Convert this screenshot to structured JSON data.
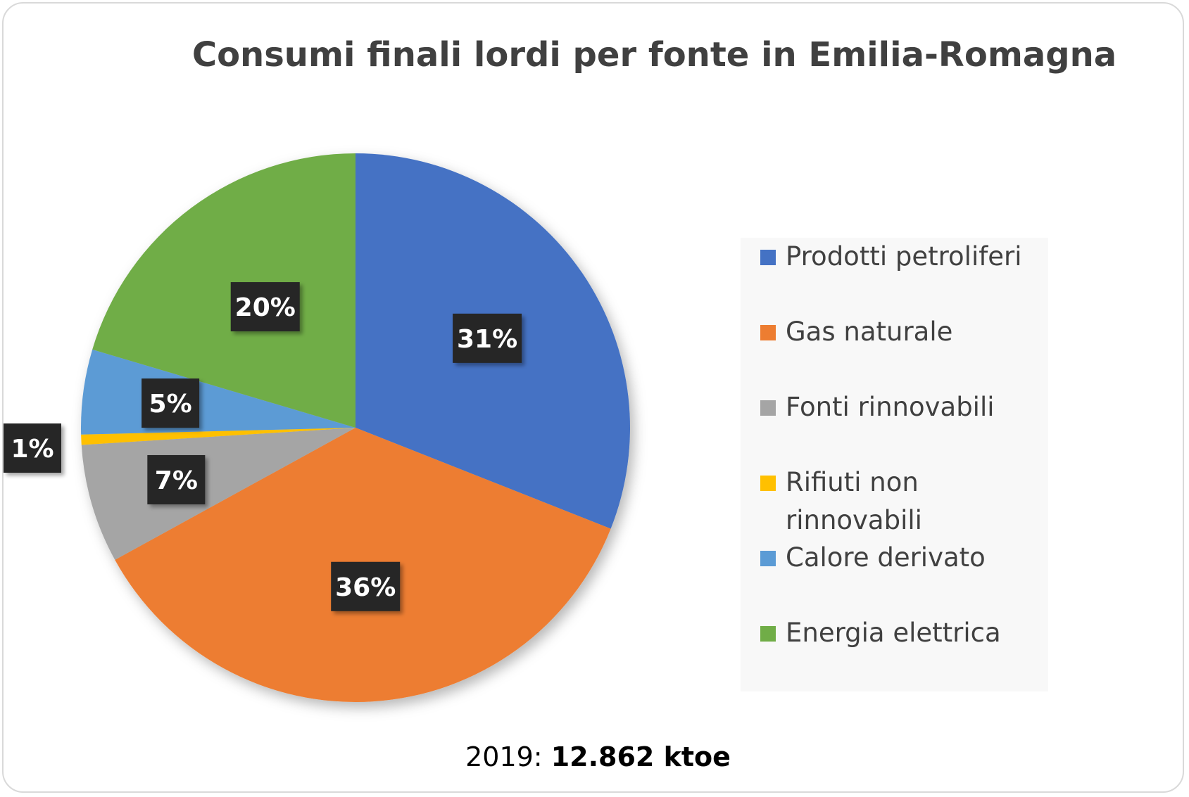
{
  "chart_data": {
    "type": "pie",
    "title": "Consumi finali lordi per fonte in Emilia-Romagna",
    "unit": "%",
    "legend_position": "right",
    "slices": [
      {
        "name": "Prodotti petroliferi",
        "value": 31,
        "label": "31%",
        "color": "#4472c4"
      },
      {
        "name": "Gas naturale",
        "value": 36,
        "label": "36%",
        "color": "#ed7d31"
      },
      {
        "name": "Fonti rinnovabili",
        "value": 7,
        "label": "7%",
        "color": "#a5a5a5"
      },
      {
        "name": "Rifiuti non rinnovabili",
        "value": 0.6,
        "label": "1%",
        "color": "#ffc000"
      },
      {
        "name": "Calore derivato",
        "value": 5,
        "label": "5%",
        "color": "#5b9bd5"
      },
      {
        "name": "Energia elettrica",
        "value": 20.4,
        "label": "20%",
        "color": "#70ad47"
      }
    ]
  },
  "footer": {
    "year_label": "2019:",
    "total": "12.862 ktoe"
  }
}
